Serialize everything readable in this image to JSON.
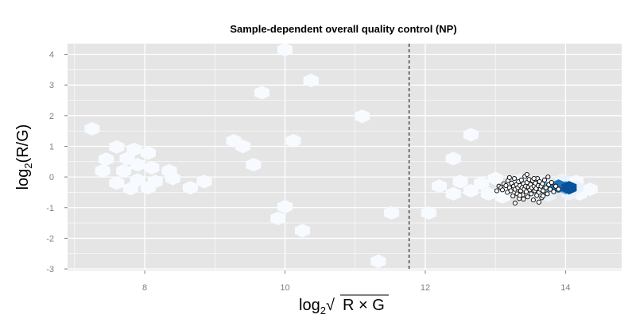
{
  "chart_data": {
    "type": "scatter",
    "title": "Sample-dependent overall quality control (NP)",
    "xlabel": {
      "prefix": "log",
      "sub": "2",
      "radical": "√",
      "expr": "R × G"
    },
    "ylabel": {
      "prefix": "log",
      "sub": "2",
      "expr": "(R/G)"
    },
    "xlim": [
      6.9,
      14.8
    ],
    "ylim": [
      -3.05,
      4.35
    ],
    "x_ticks": [
      8,
      10,
      12,
      14
    ],
    "y_ticks": [
      -3,
      -2,
      -1,
      0,
      1,
      2,
      3,
      4
    ],
    "x_tick_labels": [
      "8",
      "10",
      "12",
      "14"
    ],
    "y_tick_labels": [
      "-3",
      "-2",
      "-1",
      "0",
      "1",
      "2",
      "3",
      "4"
    ],
    "grid": true,
    "background": "#e5e5e5",
    "vline": {
      "x": 11.77,
      "style": "dashed",
      "color": "#000000"
    },
    "hex_colors": [
      "#f7fbff",
      "#eaf3fb",
      "#c6dbef",
      "#6baed6",
      "#2171b5",
      "#08519c"
    ],
    "hexbins": [
      {
        "x": 7.25,
        "y": 1.57,
        "level": 0
      },
      {
        "x": 7.6,
        "y": 0.98,
        "level": 0
      },
      {
        "x": 7.45,
        "y": 0.58,
        "level": 0
      },
      {
        "x": 7.75,
        "y": 0.6,
        "level": 0
      },
      {
        "x": 7.85,
        "y": 0.9,
        "level": 0
      },
      {
        "x": 8.05,
        "y": 0.78,
        "level": 0
      },
      {
        "x": 7.4,
        "y": 0.2,
        "level": 0
      },
      {
        "x": 7.7,
        "y": 0.2,
        "level": 0
      },
      {
        "x": 7.9,
        "y": 0.4,
        "level": 0
      },
      {
        "x": 8.1,
        "y": 0.3,
        "level": 0
      },
      {
        "x": 8.35,
        "y": 0.2,
        "level": 0
      },
      {
        "x": 7.6,
        "y": -0.2,
        "level": 0
      },
      {
        "x": 7.9,
        "y": -0.1,
        "level": 0
      },
      {
        "x": 8.15,
        "y": -0.15,
        "level": 0
      },
      {
        "x": 8.4,
        "y": -0.05,
        "level": 0
      },
      {
        "x": 8.05,
        "y": -0.35,
        "level": 0
      },
      {
        "x": 7.8,
        "y": -0.38,
        "level": 0
      },
      {
        "x": 8.65,
        "y": -0.35,
        "level": 0
      },
      {
        "x": 8.85,
        "y": -0.15,
        "level": 0
      },
      {
        "x": 9.27,
        "y": 1.18,
        "level": 0
      },
      {
        "x": 9.4,
        "y": 1.0,
        "level": 0
      },
      {
        "x": 9.55,
        "y": 0.4,
        "level": 0
      },
      {
        "x": 9.67,
        "y": 2.75,
        "level": 0
      },
      {
        "x": 9.9,
        "y": -1.35,
        "level": 0
      },
      {
        "x": 10.0,
        "y": 4.15,
        "level": 0
      },
      {
        "x": 10.0,
        "y": -0.97,
        "level": 0
      },
      {
        "x": 10.12,
        "y": 1.18,
        "level": 0
      },
      {
        "x": 10.25,
        "y": -1.75,
        "level": 0
      },
      {
        "x": 10.37,
        "y": 3.15,
        "level": 0
      },
      {
        "x": 11.1,
        "y": 1.98,
        "level": 0
      },
      {
        "x": 11.33,
        "y": -2.75,
        "level": 0
      },
      {
        "x": 11.52,
        "y": -1.17,
        "level": 0
      },
      {
        "x": 12.05,
        "y": -1.17,
        "level": 0
      },
      {
        "x": 12.4,
        "y": 0.6,
        "level": 0
      },
      {
        "x": 12.65,
        "y": 1.38,
        "level": 0
      },
      {
        "x": 12.2,
        "y": -0.3,
        "level": 0
      },
      {
        "x": 12.4,
        "y": -0.55,
        "level": 0
      },
      {
        "x": 12.5,
        "y": -0.15,
        "level": 0
      },
      {
        "x": 12.65,
        "y": -0.45,
        "level": 0
      },
      {
        "x": 12.8,
        "y": -0.2,
        "level": 0
      },
      {
        "x": 12.9,
        "y": -0.55,
        "level": 0
      },
      {
        "x": 13.0,
        "y": -0.05,
        "level": 0
      },
      {
        "x": 13.1,
        "y": -0.65,
        "level": 0
      },
      {
        "x": 14.2,
        "y": -0.55,
        "level": 0
      },
      {
        "x": 14.35,
        "y": -0.4,
        "level": 0
      },
      {
        "x": 14.15,
        "y": -0.15,
        "level": 0
      },
      {
        "x": 13.2,
        "y": -0.3,
        "level": 1
      },
      {
        "x": 13.35,
        "y": -0.1,
        "level": 1
      },
      {
        "x": 13.45,
        "y": -0.55,
        "level": 1
      },
      {
        "x": 13.65,
        "y": -0.15,
        "level": 1
      },
      {
        "x": 13.75,
        "y": -0.6,
        "level": 1
      },
      {
        "x": 13.95,
        "y": -0.1,
        "level": 1
      },
      {
        "x": 14.05,
        "y": -0.55,
        "level": 1
      },
      {
        "x": 14.15,
        "y": -0.35,
        "level": 1
      },
      {
        "x": 13.55,
        "y": -0.35,
        "level": 2
      },
      {
        "x": 13.85,
        "y": -0.35,
        "level": 2
      },
      {
        "x": 13.7,
        "y": -0.35,
        "level": 3
      },
      {
        "x": 14.0,
        "y": -0.35,
        "level": 3
      },
      {
        "x": 13.9,
        "y": -0.3,
        "level": 4
      },
      {
        "x": 14.05,
        "y": -0.35,
        "level": 5
      }
    ],
    "points": [
      {
        "x": 13.05,
        "y": -0.3
      },
      {
        "x": 13.08,
        "y": -0.35
      },
      {
        "x": 13.1,
        "y": -0.42
      },
      {
        "x": 13.12,
        "y": -0.22
      },
      {
        "x": 13.15,
        "y": -0.28
      },
      {
        "x": 13.17,
        "y": -0.5
      },
      {
        "x": 13.18,
        "y": -0.12
      },
      {
        "x": 13.2,
        "y": -0.35
      },
      {
        "x": 13.22,
        "y": -0.45
      },
      {
        "x": 13.23,
        "y": -0.2
      },
      {
        "x": 13.25,
        "y": -0.62
      },
      {
        "x": 13.26,
        "y": -0.3
      },
      {
        "x": 13.27,
        "y": -0.05
      },
      {
        "x": 13.28,
        "y": -0.4
      },
      {
        "x": 13.3,
        "y": -0.25
      },
      {
        "x": 13.31,
        "y": -0.55
      },
      {
        "x": 13.32,
        "y": -0.35
      },
      {
        "x": 13.33,
        "y": -0.15
      },
      {
        "x": 13.34,
        "y": -0.7
      },
      {
        "x": 13.35,
        "y": -0.28
      },
      {
        "x": 13.36,
        "y": -0.45
      },
      {
        "x": 13.37,
        "y": -0.1
      },
      {
        "x": 13.38,
        "y": -0.35
      },
      {
        "x": 13.39,
        "y": -0.58
      },
      {
        "x": 13.4,
        "y": -0.22
      },
      {
        "x": 13.41,
        "y": -0.4
      },
      {
        "x": 13.42,
        "y": 0.02
      },
      {
        "x": 13.43,
        "y": -0.3
      },
      {
        "x": 13.44,
        "y": -0.48
      },
      {
        "x": 13.45,
        "y": -0.18
      },
      {
        "x": 13.46,
        "y": -0.65
      },
      {
        "x": 13.47,
        "y": -0.33
      },
      {
        "x": 13.48,
        "y": -0.08
      },
      {
        "x": 13.49,
        "y": -0.42
      },
      {
        "x": 13.5,
        "y": -0.25
      },
      {
        "x": 13.51,
        "y": -0.55
      },
      {
        "x": 13.52,
        "y": -0.35
      },
      {
        "x": 13.53,
        "y": -0.12
      },
      {
        "x": 13.54,
        "y": -0.75
      },
      {
        "x": 13.55,
        "y": -0.3
      },
      {
        "x": 13.56,
        "y": -0.45
      },
      {
        "x": 13.57,
        "y": -0.2
      },
      {
        "x": 13.58,
        "y": -0.38
      },
      {
        "x": 13.59,
        "y": -0.6
      },
      {
        "x": 13.6,
        "y": -0.05
      },
      {
        "x": 13.61,
        "y": -0.28
      },
      {
        "x": 13.62,
        "y": -0.5
      },
      {
        "x": 13.63,
        "y": -0.15
      },
      {
        "x": 13.64,
        "y": -0.4
      },
      {
        "x": 13.65,
        "y": -0.3
      },
      {
        "x": 13.66,
        "y": -0.68
      },
      {
        "x": 13.67,
        "y": -0.22
      },
      {
        "x": 13.68,
        "y": -0.45
      },
      {
        "x": 13.7,
        "y": -0.1
      },
      {
        "x": 13.72,
        "y": -0.35
      },
      {
        "x": 13.74,
        "y": -0.55
      },
      {
        "x": 13.76,
        "y": -0.25
      },
      {
        "x": 13.78,
        "y": -0.4
      },
      {
        "x": 13.8,
        "y": -0.18
      },
      {
        "x": 13.83,
        "y": -0.48
      },
      {
        "x": 13.86,
        "y": -0.3
      },
      {
        "x": 13.9,
        "y": -0.4
      },
      {
        "x": 13.28,
        "y": -0.85
      },
      {
        "x": 13.62,
        "y": -0.82
      },
      {
        "x": 13.45,
        "y": 0.08
      },
      {
        "x": 13.2,
        "y": -0.02
      },
      {
        "x": 13.75,
        "y": 0.0
      },
      {
        "x": 13.02,
        "y": -0.45
      },
      {
        "x": 13.35,
        "y": -0.6
      },
      {
        "x": 13.55,
        "y": -0.05
      },
      {
        "x": 13.4,
        "y": -0.72
      },
      {
        "x": 13.68,
        "y": -0.62
      }
    ]
  }
}
